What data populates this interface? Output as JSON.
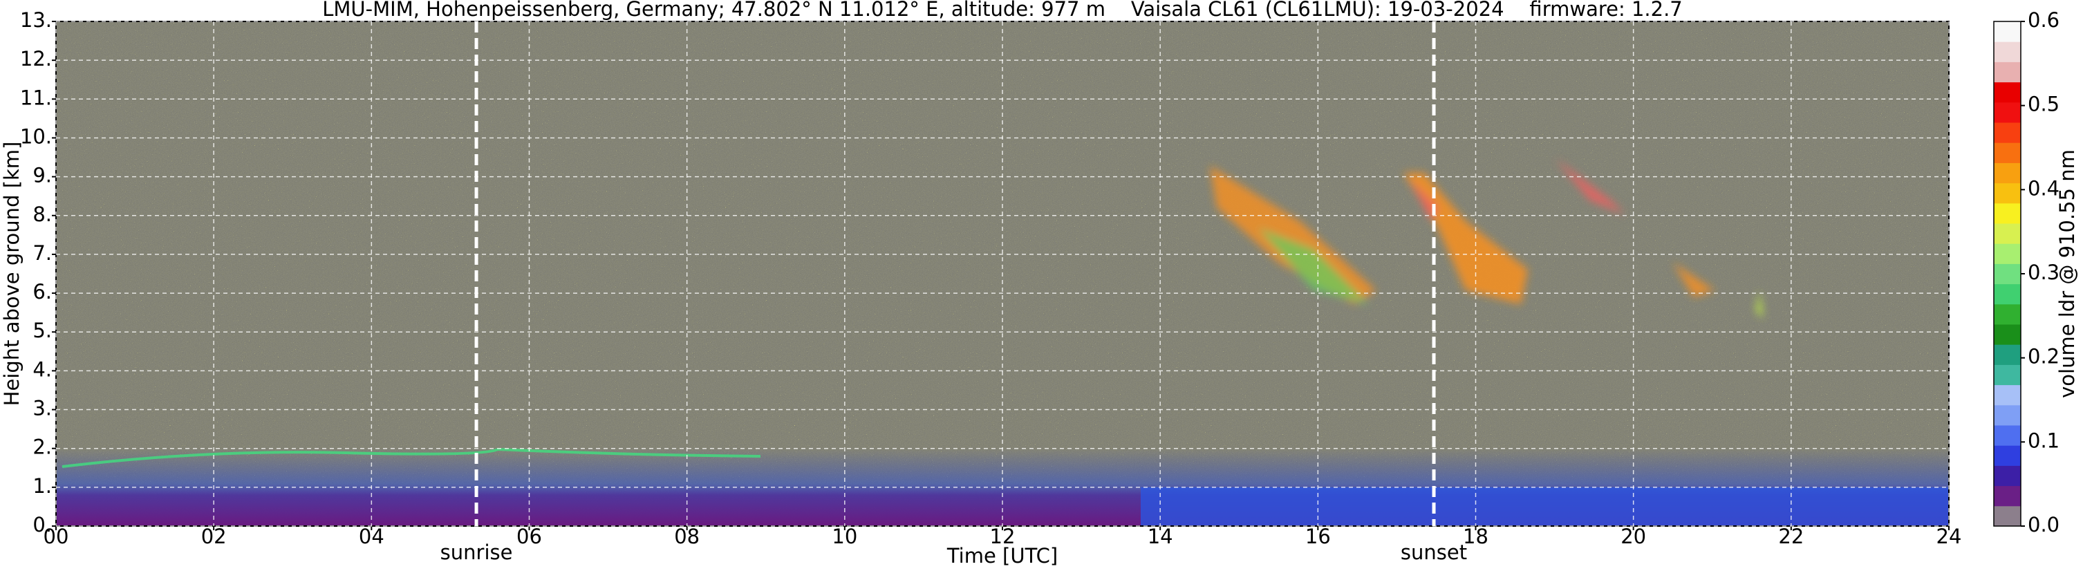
{
  "chart_data": {
    "type": "heatmap",
    "title": "LMU-MIM, Hohenpeissenberg, Germany; 47.802° N 11.012° E, altitude: 977 m    Vaisala CL61 (CL61LMU): 19-03-2024    firmware: 1.2.7",
    "xlabel": "Time [UTC]",
    "ylabel": "Height above ground [km]",
    "xlim": [
      0,
      24
    ],
    "xticks": [
      {
        "value": 0,
        "label": "00"
      },
      {
        "value": 2,
        "label": "02"
      },
      {
        "value": 4,
        "label": "04"
      },
      {
        "value": 6,
        "label": "06"
      },
      {
        "value": 8,
        "label": "08"
      },
      {
        "value": 10,
        "label": "10"
      },
      {
        "value": 12,
        "label": "12"
      },
      {
        "value": 14,
        "label": "14"
      },
      {
        "value": 16,
        "label": "16"
      },
      {
        "value": 18,
        "label": "18"
      },
      {
        "value": 20,
        "label": "20"
      },
      {
        "value": 22,
        "label": "22"
      },
      {
        "value": 24,
        "label": "24"
      }
    ],
    "ylim": [
      0,
      13
    ],
    "yticks": [
      {
        "value": 0,
        "label": "0."
      },
      {
        "value": 1,
        "label": "1."
      },
      {
        "value": 2,
        "label": "2."
      },
      {
        "value": 3,
        "label": "3."
      },
      {
        "value": 4,
        "label": "4."
      },
      {
        "value": 5,
        "label": "5."
      },
      {
        "value": 6,
        "label": "6."
      },
      {
        "value": 7,
        "label": "7."
      },
      {
        "value": 8,
        "label": "8."
      },
      {
        "value": 9,
        "label": "9."
      },
      {
        "value": 10,
        "label": "10."
      },
      {
        "value": 11,
        "label": "11."
      },
      {
        "value": 12,
        "label": "12."
      },
      {
        "value": 13,
        "label": "13."
      }
    ],
    "grid": true,
    "annotations": [
      {
        "text": "sunrise",
        "x": 5.33
      },
      {
        "text": "sunset",
        "x": 17.47
      }
    ],
    "colorbar": {
      "label": "volume ldr @ 910.55 nm",
      "lim": [
        0,
        0.6
      ],
      "ticks": [
        {
          "value": 0,
          "label": "0.0"
        },
        {
          "value": 0.1,
          "label": "0.1"
        },
        {
          "value": 0.2,
          "label": "0.2"
        },
        {
          "value": 0.3,
          "label": "0.3"
        },
        {
          "value": 0.4,
          "label": "0.4"
        },
        {
          "value": 0.5,
          "label": "0.5"
        },
        {
          "value": 0.6,
          "label": "0.6"
        }
      ],
      "colors": [
        "#8c7f8c",
        "#6a1f86",
        "#3c1fa6",
        "#2f3fe0",
        "#4f6ff0",
        "#7f9ff5",
        "#a7c0f7",
        "#3fb8a0",
        "#1f9f7f",
        "#1a8f1a",
        "#30b030",
        "#40d070",
        "#70e080",
        "#a8ef70",
        "#d8f050",
        "#f8f020",
        "#f8c010",
        "#f8a010",
        "#f87010",
        "#f84010",
        "#f01010",
        "#e80000",
        "#e8b0b0",
        "#f0d8d8",
        "#f8f8f8"
      ]
    }
  }
}
